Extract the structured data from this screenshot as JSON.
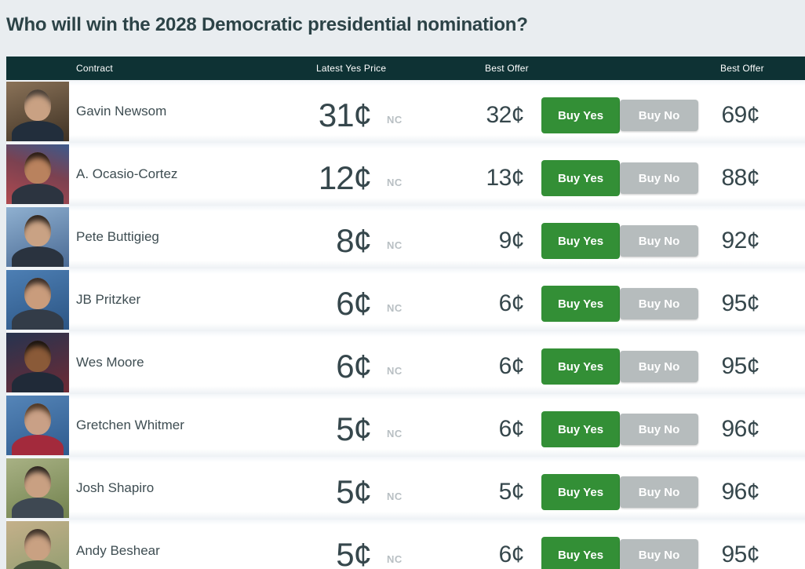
{
  "page": {
    "title": "Who will win the 2028 Democratic presidential nomination?"
  },
  "colors": {
    "header_bar": "#0e3234",
    "buy_yes_green": "#338f36",
    "buy_no_gray": "#b6bcbd",
    "price_text": "#36474c",
    "change_text": "#b8bfc3",
    "page_background": "#e9edf0"
  },
  "table": {
    "headers": {
      "contract": "Contract",
      "latest_yes_price": "Latest Yes Price",
      "best_offer_yes": "Best Offer",
      "best_offer_no": "Best Offer"
    },
    "buttons": {
      "buy_yes": "Buy Yes",
      "buy_no": "Buy No"
    },
    "rows": [
      {
        "name": "Gavin Newsom",
        "latest_yes_price": "31¢",
        "change": "NC",
        "best_offer_yes": "32¢",
        "best_offer_no": "69¢"
      },
      {
        "name": "A. Ocasio-Cortez",
        "latest_yes_price": "12¢",
        "change": "NC",
        "best_offer_yes": "13¢",
        "best_offer_no": "88¢"
      },
      {
        "name": "Pete Buttigieg",
        "latest_yes_price": "8¢",
        "change": "NC",
        "best_offer_yes": "9¢",
        "best_offer_no": "92¢"
      },
      {
        "name": "JB Pritzker",
        "latest_yes_price": "6¢",
        "change": "NC",
        "best_offer_yes": "6¢",
        "best_offer_no": "95¢"
      },
      {
        "name": "Wes Moore",
        "latest_yes_price": "6¢",
        "change": "NC",
        "best_offer_yes": "6¢",
        "best_offer_no": "95¢"
      },
      {
        "name": "Gretchen Whitmer",
        "latest_yes_price": "5¢",
        "change": "NC",
        "best_offer_yes": "6¢",
        "best_offer_no": "96¢"
      },
      {
        "name": "Josh Shapiro",
        "latest_yes_price": "5¢",
        "change": "NC",
        "best_offer_yes": "5¢",
        "best_offer_no": "96¢"
      },
      {
        "name": "Andy Beshear",
        "latest_yes_price": "5¢",
        "change": "NC",
        "best_offer_yes": "6¢",
        "best_offer_no": "95¢"
      }
    ]
  }
}
